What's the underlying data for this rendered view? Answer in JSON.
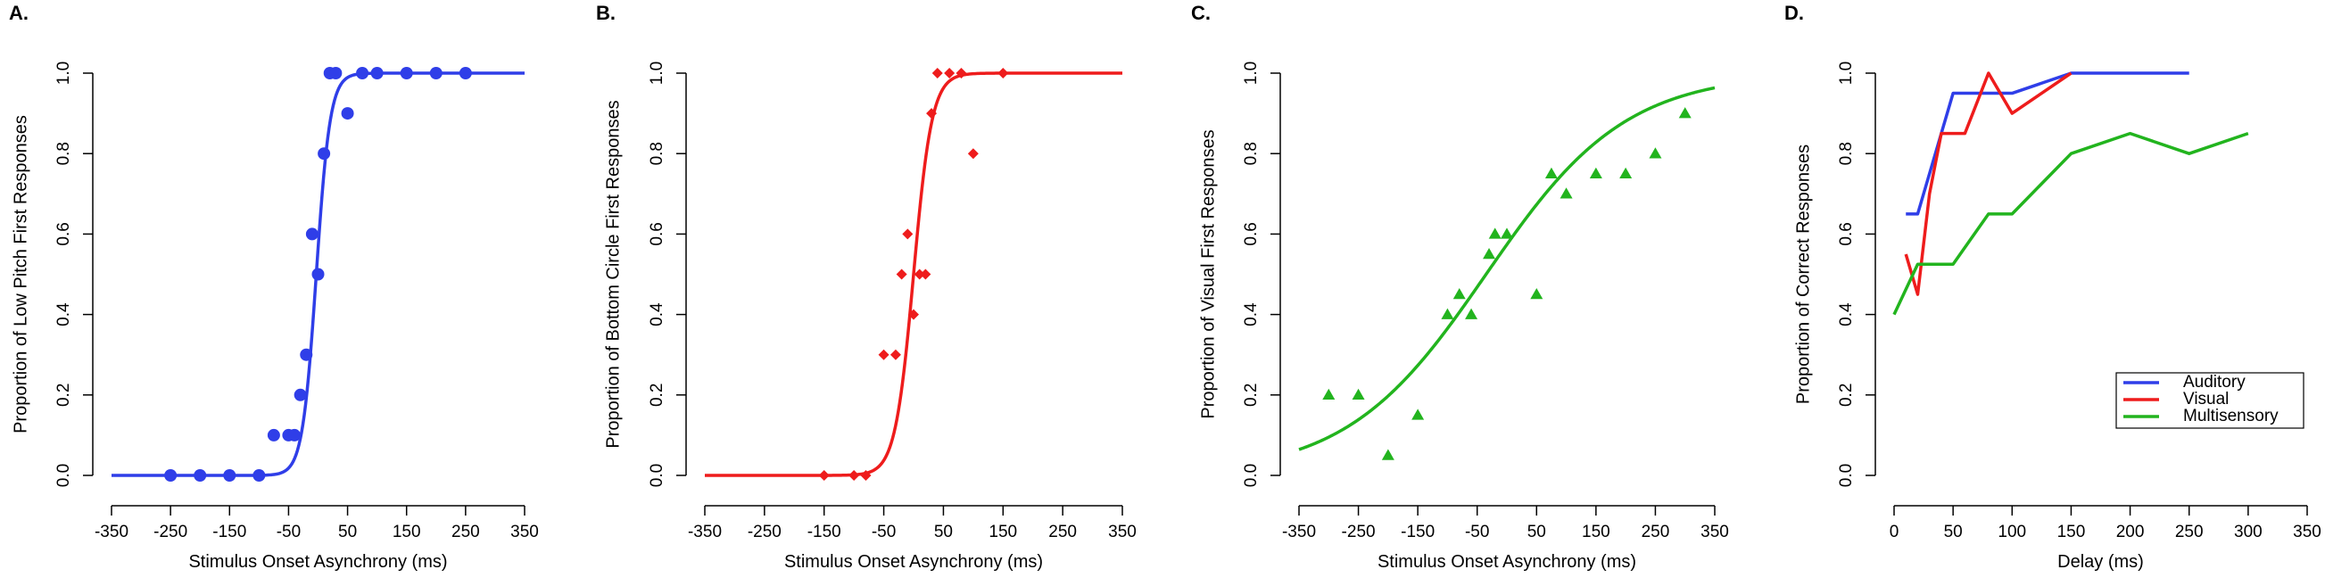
{
  "chart_data": [
    {
      "type": "scatter",
      "panel_label": "A.",
      "xlabel": "Stimulus Onset Asynchrony (ms)",
      "ylabel": "Proportion of Low Pitch First Responses",
      "xlim": [
        -350,
        350
      ],
      "ylim": [
        0,
        1
      ],
      "xticks": [
        -350,
        -250,
        -150,
        -50,
        50,
        150,
        250,
        350
      ],
      "yticks": [
        "0.0",
        "0.2",
        "0.4",
        "0.6",
        "0.8",
        "1.0"
      ],
      "color": "#2f3ee8",
      "marker": "circle",
      "points": {
        "x": [
          -250,
          -200,
          -150,
          -100,
          -75,
          -50,
          -40,
          -30,
          -20,
          -10,
          0,
          10,
          20,
          30,
          50,
          75,
          100,
          150,
          200,
          250
        ],
        "y": [
          0,
          0,
          0,
          0,
          0.1,
          0.1,
          0.1,
          0.2,
          0.3,
          0.6,
          0.5,
          0.8,
          1.0,
          1.0,
          0.9,
          1.0,
          1.0,
          1.0,
          1.0,
          1.0
        ]
      },
      "fit": {
        "model": "logistic",
        "x_range": [
          -350,
          350
        ],
        "mu": -3,
        "slope": 0.085
      }
    },
    {
      "type": "scatter",
      "panel_label": "B.",
      "xlabel": "Stimulus Onset Asynchrony (ms)",
      "ylabel": "Proportion of Bottom Circle First Responses",
      "xlim": [
        -350,
        350
      ],
      "ylim": [
        0,
        1
      ],
      "xticks": [
        -350,
        -250,
        -150,
        -50,
        50,
        150,
        250,
        350
      ],
      "yticks": [
        "0.0",
        "0.2",
        "0.4",
        "0.6",
        "0.8",
        "1.0"
      ],
      "color": "#ee1c1c",
      "marker": "diamond",
      "points": {
        "x": [
          -150,
          -100,
          -80,
          -50,
          -30,
          -20,
          -10,
          0,
          10,
          20,
          30,
          40,
          60,
          80,
          100,
          150
        ],
        "y": [
          0,
          0,
          0,
          0.3,
          0.3,
          0.5,
          0.6,
          0.4,
          0.5,
          0.5,
          0.9,
          1.0,
          1.0,
          1.0,
          0.8,
          1.0
        ]
      },
      "fit": {
        "model": "logistic",
        "x_range": [
          -350,
          350
        ],
        "mu": 0,
        "slope": 0.065
      }
    },
    {
      "type": "scatter",
      "panel_label": "C.",
      "xlabel": "Stimulus Onset Asynchrony (ms)",
      "ylabel": "Proportion of Visual First Responses",
      "xlim": [
        -350,
        350
      ],
      "ylim": [
        0,
        1
      ],
      "xticks": [
        -350,
        -250,
        -150,
        -50,
        50,
        150,
        250,
        350
      ],
      "yticks": [
        "0.0",
        "0.2",
        "0.4",
        "0.6",
        "0.8",
        "1.0"
      ],
      "color": "#22b41e",
      "marker": "triangle",
      "points": {
        "x": [
          -300,
          -250,
          -200,
          -150,
          -100,
          -80,
          -60,
          -30,
          -20,
          0,
          50,
          75,
          100,
          150,
          200,
          250,
          300
        ],
        "y": [
          0.2,
          0.2,
          0.05,
          0.15,
          0.4,
          0.45,
          0.4,
          0.55,
          0.6,
          0.6,
          0.45,
          0.75,
          0.7,
          0.75,
          0.75,
          0.8,
          0.9
        ]
      },
      "fit": {
        "model": "logistic",
        "x_range": [
          -350,
          350
        ],
        "mu": -35,
        "slope": 0.0085
      }
    },
    {
      "type": "line",
      "panel_label": "D.",
      "xlabel": "Delay (ms)",
      "ylabel": "Proportion of Correct Responses",
      "xlim": [
        0,
        350
      ],
      "ylim": [
        0,
        1
      ],
      "xticks": [
        0,
        50,
        100,
        150,
        200,
        250,
        300,
        350
      ],
      "yticks": [
        "0.0",
        "0.2",
        "0.4",
        "0.6",
        "0.8",
        "1.0"
      ],
      "legend_position": "bottom-right",
      "series": [
        {
          "name": "Auditory",
          "color": "#2f3ee8",
          "x": [
            10,
            20,
            30,
            40,
            50,
            60,
            80,
            100,
            125,
            150,
            200,
            250
          ],
          "y": [
            0.65,
            0.65,
            0.75,
            0.85,
            0.95,
            0.95,
            0.95,
            0.95,
            0.975,
            1.0,
            1.0,
            1.0
          ]
        },
        {
          "name": "Visual",
          "color": "#ee1c1c",
          "x": [
            10,
            20,
            30,
            40,
            50,
            60,
            80,
            100,
            125,
            150
          ],
          "y": [
            0.55,
            0.45,
            0.7,
            0.85,
            0.85,
            0.85,
            1.0,
            0.9,
            0.95,
            1.0
          ]
        },
        {
          "name": "Multisensory",
          "color": "#22b41e",
          "x": [
            0,
            20,
            40,
            50,
            80,
            100,
            150,
            200,
            250,
            300
          ],
          "y": [
            0.4,
            0.525,
            0.525,
            0.525,
            0.65,
            0.65,
            0.8,
            0.85,
            0.8,
            0.85
          ]
        }
      ]
    }
  ]
}
